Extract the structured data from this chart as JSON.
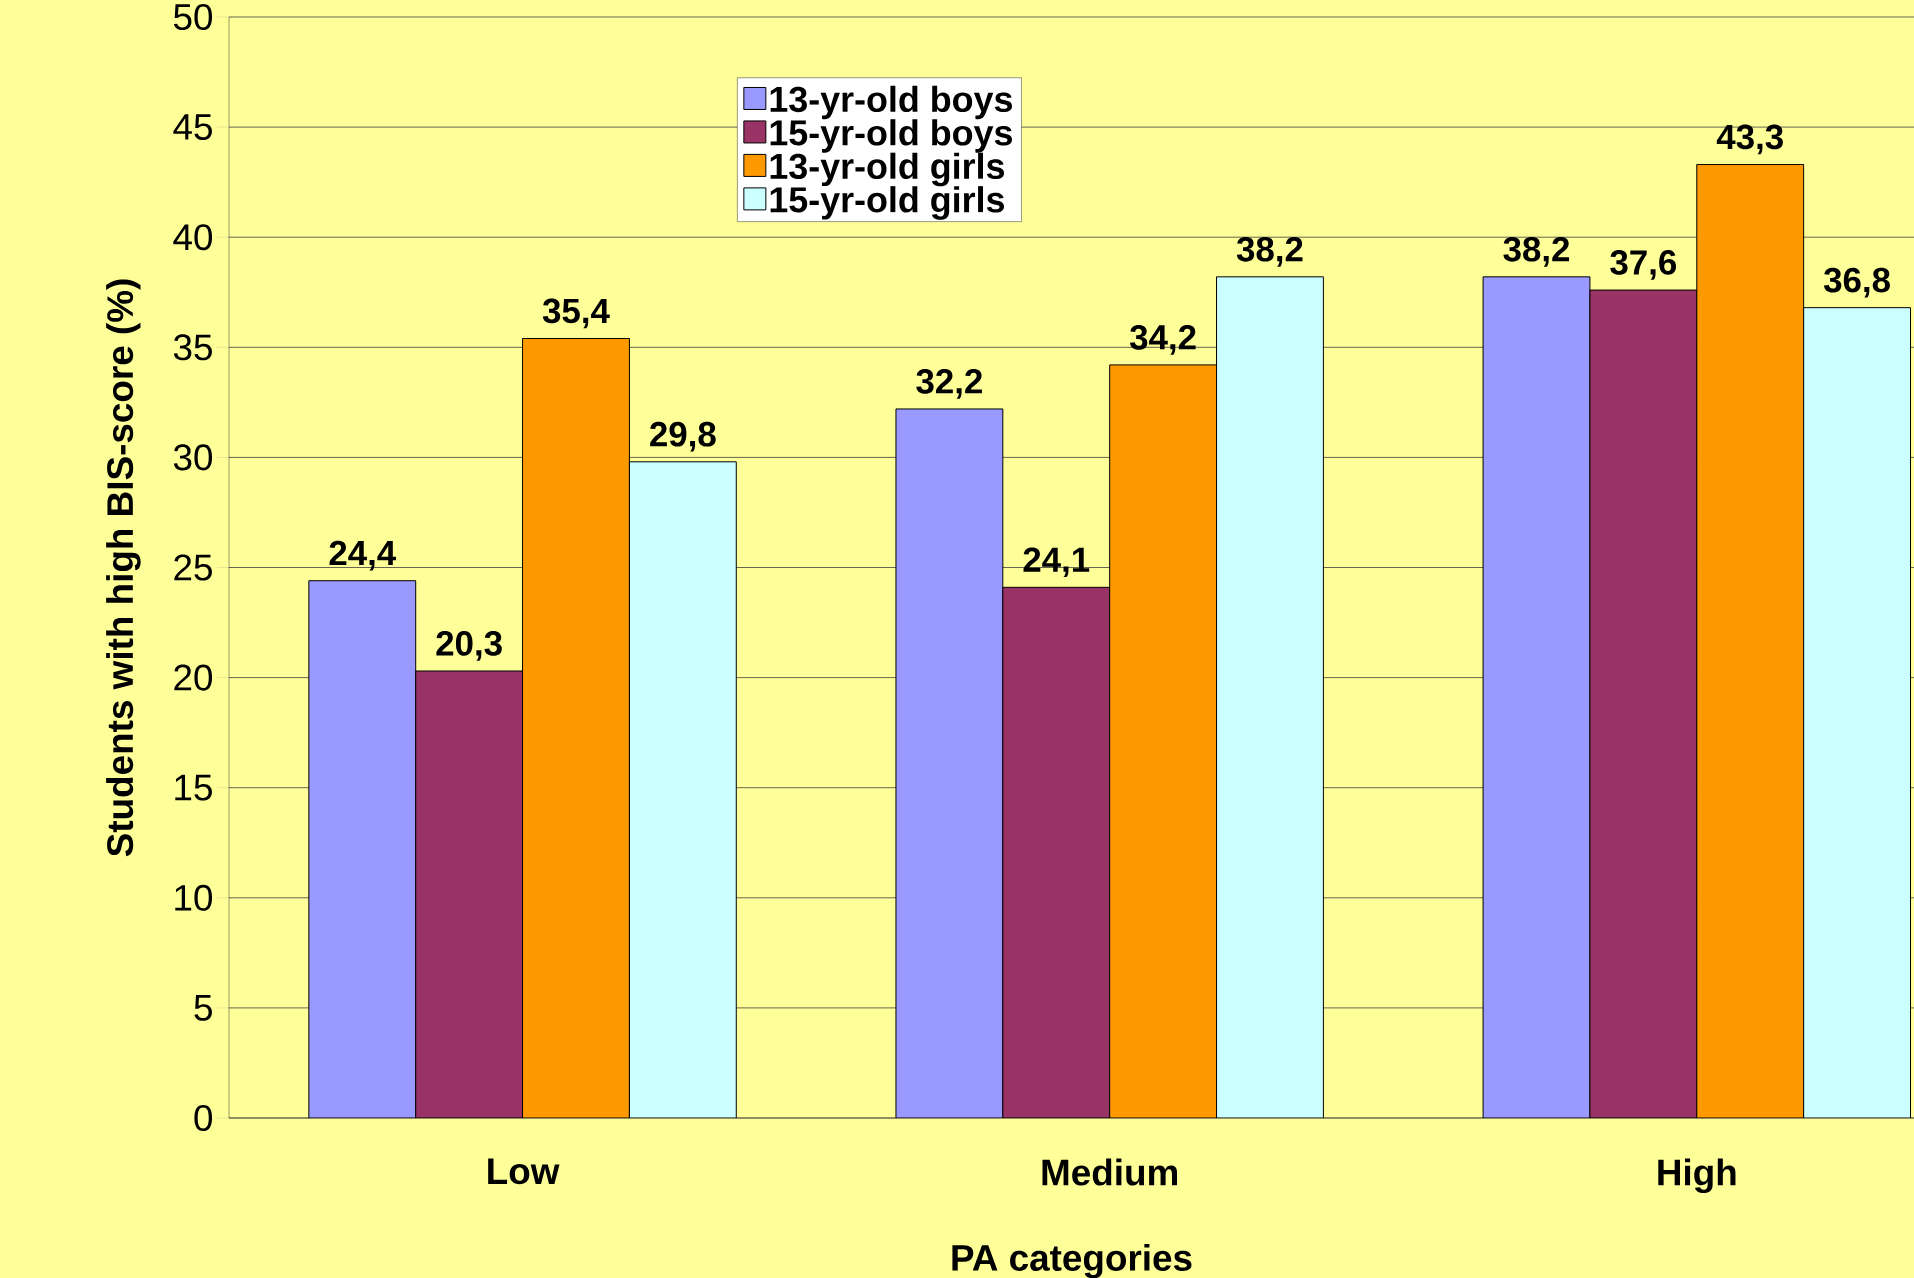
{
  "chart_data": {
    "type": "bar",
    "xlabel": "PA categories",
    "ylabel": "Students with high BIS-score (%)",
    "categories": [
      "Low",
      "Medium",
      "High"
    ],
    "series": [
      {
        "name": "13-yr-old boys",
        "color": "#9999ff",
        "values": [
          24.4,
          32.2,
          38.2
        ],
        "value_labels": [
          "24,4",
          "32,2",
          "38,2"
        ]
      },
      {
        "name": "15-yr-old boys",
        "color": "#993366",
        "values": [
          20.3,
          24.1,
          37.6
        ],
        "value_labels": [
          "20,3",
          "24,1",
          "37,6"
        ]
      },
      {
        "name": "13-yr-old girls",
        "color": "#ff9900",
        "values": [
          35.4,
          34.2,
          43.3
        ],
        "value_labels": [
          "35,4",
          "34,2",
          "43,3"
        ]
      },
      {
        "name": "15-yr-old girls",
        "color": "#ccffff",
        "values": [
          29.8,
          38.2,
          36.8
        ],
        "value_labels": [
          "29,8",
          "38,2",
          "36,8"
        ]
      }
    ],
    "ylim": [
      0,
      50
    ],
    "yticks": [
      0,
      5,
      10,
      15,
      20,
      25,
      30,
      35,
      40,
      45,
      50
    ],
    "grid": "y",
    "legend": "top"
  }
}
